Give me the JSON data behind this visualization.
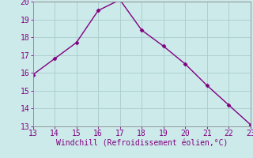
{
  "x": [
    13,
    14,
    15,
    16,
    17,
    18,
    19,
    20,
    21,
    22,
    23
  ],
  "y": [
    15.9,
    16.8,
    17.7,
    19.5,
    20.1,
    18.4,
    17.5,
    16.5,
    15.3,
    14.2,
    13.1
  ],
  "xlim": [
    13,
    23
  ],
  "ylim": [
    13,
    20
  ],
  "xticks": [
    13,
    14,
    15,
    16,
    17,
    18,
    19,
    20,
    21,
    22,
    23
  ],
  "yticks": [
    13,
    14,
    15,
    16,
    17,
    18,
    19,
    20
  ],
  "xlabel": "Windchill (Refroidissement éolien,°C)",
  "line_color": "#800080",
  "marker": "D",
  "bg_color": "#cceaea",
  "grid_color": "#aacccc",
  "tick_color": "#800080",
  "label_color": "#800080",
  "font_size": 7,
  "xlabel_fontsize": 7,
  "marker_size": 2.5,
  "line_width": 1.0,
  "spine_color": "#888888"
}
